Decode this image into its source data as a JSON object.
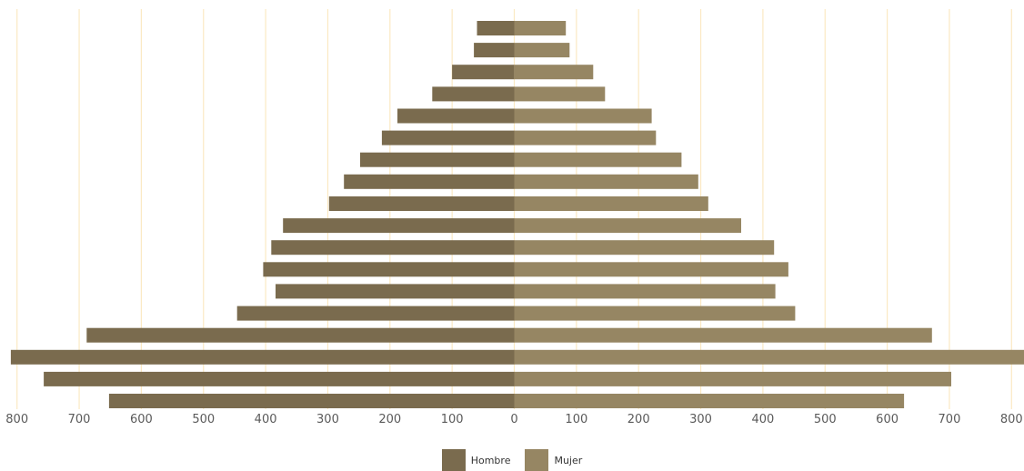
{
  "chart_data": {
    "type": "bar",
    "orientation": "horizontal",
    "layout": "population-pyramid",
    "title": "",
    "xlabel": "",
    "ylabel": "",
    "xlim": [
      -820,
      820
    ],
    "x_ticks": [
      -800,
      -700,
      -600,
      -500,
      -400,
      -300,
      -200,
      -100,
      0,
      100,
      200,
      300,
      400,
      500,
      600,
      700,
      800
    ],
    "x_tick_labels": [
      "800",
      "700",
      "600",
      "500",
      "400",
      "300",
      "200",
      "100",
      "0",
      "100",
      "200",
      "300",
      "400",
      "500",
      "600",
      "700",
      "800"
    ],
    "grid": "vertical",
    "legend_position": "bottom-center",
    "series": [
      {
        "name": "Hombre",
        "side": "left",
        "color": "#7a6b4e",
        "values": [
          60,
          65,
          100,
          132,
          188,
          213,
          248,
          274,
          298,
          372,
          391,
          404,
          384,
          446,
          688,
          810,
          757,
          652
        ]
      },
      {
        "name": "Mujer",
        "side": "right",
        "color": "#968663",
        "values": [
          83,
          89,
          127,
          146,
          221,
          228,
          269,
          296,
          312,
          365,
          418,
          441,
          420,
          452,
          672,
          822,
          703,
          627
        ]
      }
    ],
    "grid_color": "#fbe9c3"
  }
}
